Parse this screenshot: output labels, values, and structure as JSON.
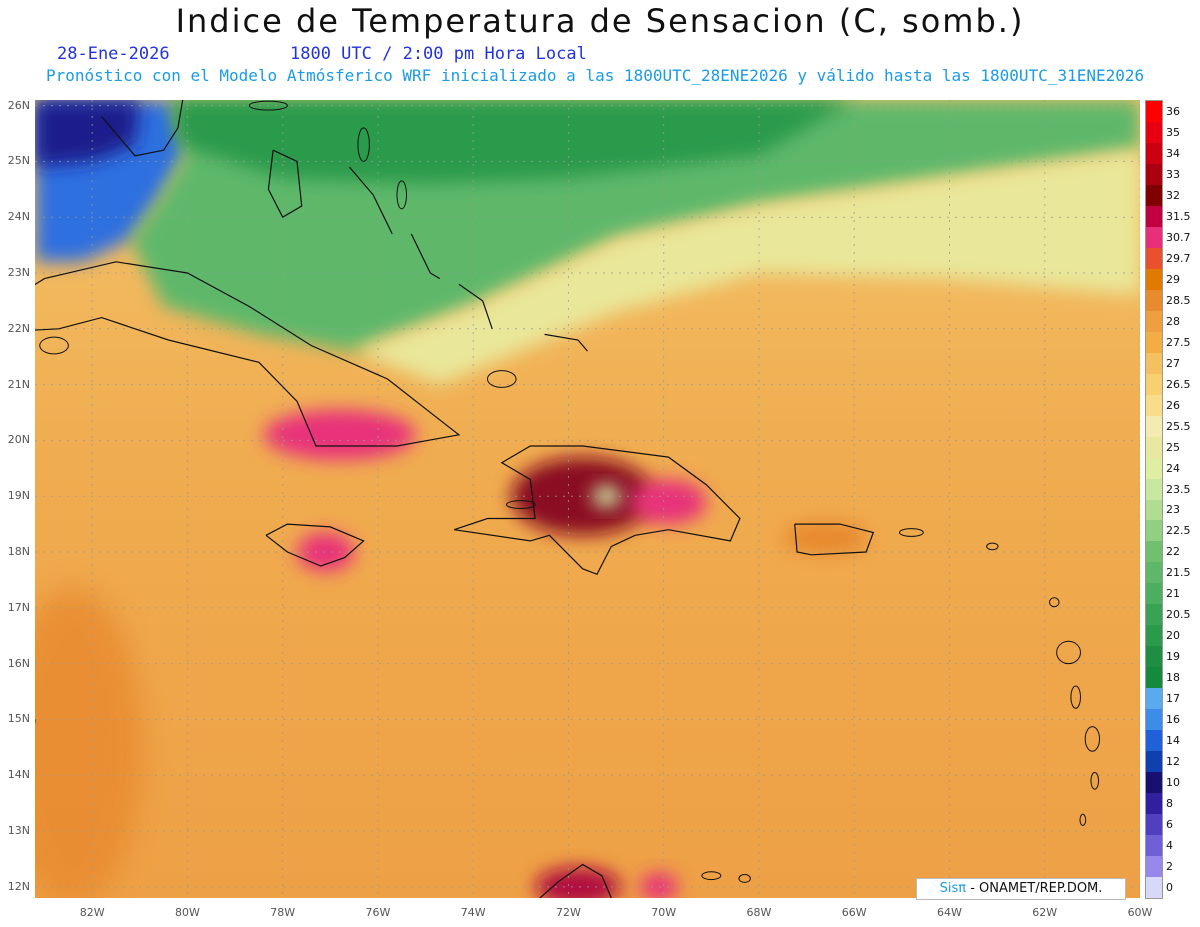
{
  "header": {
    "title": "Indice de Temperatura de Sensacion (C, somb.)",
    "date": "28-Ene-2026",
    "time": "1800 UTC / 2:00 pm Hora Local",
    "subtitle": "Pronóstico con el Modelo Atmósferico WRF inicializado a las 1800UTC_28ENE2026 y válido hasta las  1800UTC_31ENE2026"
  },
  "map": {
    "lon_range": [
      -83.2,
      -60
    ],
    "lat_range": [
      11.8,
      26.1
    ],
    "lat_ticks": [
      {
        "value": 26,
        "label": "26N"
      },
      {
        "value": 25,
        "label": "25N"
      },
      {
        "value": 24,
        "label": "24N"
      },
      {
        "value": 23,
        "label": "23N"
      },
      {
        "value": 22,
        "label": "22N"
      },
      {
        "value": 21,
        "label": "21N"
      },
      {
        "value": 20,
        "label": "20N"
      },
      {
        "value": 19,
        "label": "19N"
      },
      {
        "value": 18,
        "label": "18N"
      },
      {
        "value": 17,
        "label": "17N"
      },
      {
        "value": 16,
        "label": "16N"
      },
      {
        "value": 15,
        "label": "15N"
      },
      {
        "value": 14,
        "label": "14N"
      },
      {
        "value": 13,
        "label": "13N"
      },
      {
        "value": 12,
        "label": "12N"
      }
    ],
    "lon_ticks": [
      {
        "value": -82,
        "label": "82W"
      },
      {
        "value": -80,
        "label": "80W"
      },
      {
        "value": -78,
        "label": "78W"
      },
      {
        "value": -76,
        "label": "76W"
      },
      {
        "value": -74,
        "label": "74W"
      },
      {
        "value": -72,
        "label": "72W"
      },
      {
        "value": -70,
        "label": "70W"
      },
      {
        "value": -68,
        "label": "68W"
      },
      {
        "value": -66,
        "label": "66W"
      },
      {
        "value": -64,
        "label": "64W"
      },
      {
        "value": -62,
        "label": "62W"
      },
      {
        "value": -60,
        "label": "60W"
      }
    ],
    "field_regions": [
      {
        "name": "gulf-cool",
        "color": "#2f6fe0",
        "poly": [
          [
            -83.2,
            26.1
          ],
          [
            -80.3,
            26.1
          ],
          [
            -80.0,
            25.2
          ],
          [
            -80.6,
            24.3
          ],
          [
            -81.2,
            23.6
          ],
          [
            -82.2,
            23.2
          ],
          [
            -83.2,
            23.2
          ]
        ]
      },
      {
        "name": "florida-cold",
        "color": "#1e1a8c",
        "poly": [
          [
            -83.2,
            26.1
          ],
          [
            -81.0,
            26.1
          ],
          [
            -81.1,
            25.3
          ],
          [
            -82.0,
            25.0
          ],
          [
            -83.2,
            24.9
          ]
        ]
      },
      {
        "name": "green-north",
        "color": "#5fb86a",
        "poly": [
          [
            -80.3,
            26.1
          ],
          [
            -60,
            26.1
          ],
          [
            -60,
            25.2
          ],
          [
            -64,
            24.7
          ],
          [
            -68,
            24.2
          ],
          [
            -71,
            23.6
          ],
          [
            -74,
            22.4
          ],
          [
            -76.5,
            21.6
          ],
          [
            -78.5,
            21.9
          ],
          [
            -80.5,
            22.4
          ],
          [
            -81.2,
            23.6
          ],
          [
            -80.6,
            24.3
          ],
          [
            -80.0,
            25.2
          ]
        ]
      },
      {
        "name": "green-deep",
        "color": "#2a9a4c",
        "poly": [
          [
            -80.3,
            26.1
          ],
          [
            -66,
            26.1
          ],
          [
            -68,
            25.1
          ],
          [
            -72,
            24.7
          ],
          [
            -75,
            24.6
          ],
          [
            -78,
            24.7
          ],
          [
            -80.2,
            25.3
          ]
        ]
      },
      {
        "name": "yellow-band",
        "color": "#e9e79a",
        "poly": [
          [
            -60,
            25.2
          ],
          [
            -60,
            22.6
          ],
          [
            -64,
            22.9
          ],
          [
            -68,
            23.0
          ],
          [
            -71,
            22.3
          ],
          [
            -73,
            21.6
          ],
          [
            -74.7,
            21.0
          ],
          [
            -76.5,
            21.6
          ],
          [
            -74,
            22.4
          ],
          [
            -71,
            23.6
          ],
          [
            -68,
            24.2
          ],
          [
            -64,
            24.7
          ]
        ]
      }
    ],
    "hotspots": [
      {
        "name": "cuba-east-hot",
        "lon": -76.8,
        "lat": 20.1,
        "rx": 1.6,
        "ry": 0.45,
        "color": "#e8307a"
      },
      {
        "name": "hispaniola-hot",
        "lon": -71.7,
        "lat": 19.0,
        "rx": 1.5,
        "ry": 0.7,
        "color": "#8a0a20"
      },
      {
        "name": "hispaniola-east",
        "lon": -69.9,
        "lat": 18.9,
        "rx": 0.8,
        "ry": 0.4,
        "color": "#e8307a"
      },
      {
        "name": "jamaica-hot",
        "lon": -77.1,
        "lat": 18.0,
        "rx": 0.6,
        "ry": 0.35,
        "color": "#e8307a"
      },
      {
        "name": "puerto-rico-warm",
        "lon": -66.6,
        "lat": 18.25,
        "rx": 0.9,
        "ry": 0.3,
        "color": "#e8892e"
      },
      {
        "name": "venezuela-hot",
        "lon": -71.8,
        "lat": 12.0,
        "rx": 0.9,
        "ry": 0.35,
        "color": "#b01040"
      },
      {
        "name": "aruba-hot",
        "lon": -70.1,
        "lat": 12.0,
        "rx": 0.4,
        "ry": 0.25,
        "color": "#e8307a"
      },
      {
        "name": "hispaniola-center-cool",
        "lon": -71.2,
        "lat": 19.0,
        "rx": 0.3,
        "ry": 0.2,
        "color": "#cde9a8"
      }
    ],
    "coastlines": [
      {
        "name": "cuba-coastline",
        "pts": [
          [
            -84.9,
            21.9
          ],
          [
            -83.0,
            22.9
          ],
          [
            -81.5,
            23.2
          ],
          [
            -80.0,
            23.0
          ],
          [
            -78.7,
            22.4
          ],
          [
            -77.4,
            21.7
          ],
          [
            -75.8,
            21.1
          ],
          [
            -74.6,
            20.3
          ],
          [
            -74.3,
            20.1
          ],
          [
            -75.6,
            19.9
          ],
          [
            -77.3,
            19.9
          ],
          [
            -77.7,
            20.7
          ],
          [
            -78.5,
            21.4
          ],
          [
            -80.4,
            21.8
          ],
          [
            -81.8,
            22.2
          ],
          [
            -82.7,
            22.0
          ],
          [
            -84.9,
            21.9
          ]
        ]
      },
      {
        "name": "hispaniola-coastline",
        "pts": [
          [
            -74.4,
            18.4
          ],
          [
            -72.8,
            18.2
          ],
          [
            -72.4,
            18.3
          ],
          [
            -71.7,
            17.7
          ],
          [
            -71.4,
            17.6
          ],
          [
            -71.1,
            18.1
          ],
          [
            -70.6,
            18.3
          ],
          [
            -69.9,
            18.4
          ],
          [
            -68.6,
            18.2
          ],
          [
            -68.4,
            18.6
          ],
          [
            -69.1,
            19.2
          ],
          [
            -69.9,
            19.7
          ],
          [
            -71.7,
            19.9
          ],
          [
            -72.8,
            19.9
          ],
          [
            -73.4,
            19.6
          ],
          [
            -72.8,
            19.3
          ],
          [
            -72.7,
            18.6
          ],
          [
            -73.7,
            18.6
          ],
          [
            -74.4,
            18.4
          ]
        ]
      },
      {
        "name": "jamaica-coastline",
        "pts": [
          [
            -78.35,
            18.3
          ],
          [
            -77.9,
            18.5
          ],
          [
            -77.0,
            18.45
          ],
          [
            -76.3,
            18.2
          ],
          [
            -76.7,
            17.9
          ],
          [
            -77.2,
            17.75
          ],
          [
            -77.9,
            18.0
          ],
          [
            -78.35,
            18.3
          ]
        ]
      },
      {
        "name": "puerto-rico-coastline",
        "pts": [
          [
            -67.25,
            18.5
          ],
          [
            -66.3,
            18.5
          ],
          [
            -65.6,
            18.35
          ],
          [
            -65.75,
            18.0
          ],
          [
            -66.9,
            17.95
          ],
          [
            -67.2,
            18.0
          ],
          [
            -67.25,
            18.5
          ]
        ]
      },
      {
        "name": "florida-coastline",
        "pts": [
          [
            -80.1,
            26.1
          ],
          [
            -80.2,
            25.6
          ],
          [
            -80.5,
            25.2
          ],
          [
            -81.1,
            25.1
          ],
          [
            -81.8,
            25.8
          ]
        ]
      },
      {
        "name": "andros-coastline",
        "pts": [
          [
            -78.2,
            25.2
          ],
          [
            -77.7,
            25.0
          ],
          [
            -77.6,
            24.2
          ],
          [
            -78.0,
            24.0
          ],
          [
            -78.3,
            24.5
          ],
          [
            -78.2,
            25.2
          ]
        ]
      },
      {
        "name": "bahamas-exuma-coastline",
        "pts": [
          [
            -76.6,
            24.9
          ],
          [
            -76.1,
            24.4
          ],
          [
            -75.7,
            23.7
          ]
        ]
      },
      {
        "name": "long-island-coastline",
        "pts": [
          [
            -75.3,
            23.7
          ],
          [
            -74.9,
            23.0
          ],
          [
            -74.7,
            22.9
          ]
        ]
      },
      {
        "name": "acklins-coastline",
        "pts": [
          [
            -74.3,
            22.8
          ],
          [
            -73.8,
            22.5
          ],
          [
            -73.6,
            22.0
          ]
        ]
      },
      {
        "name": "caicos-coastline",
        "pts": [
          [
            -72.5,
            21.9
          ],
          [
            -71.8,
            21.8
          ],
          [
            -71.6,
            21.6
          ]
        ]
      },
      {
        "name": "venezuela-coastline",
        "pts": [
          [
            -72.6,
            11.8
          ],
          [
            -72.2,
            12.1
          ],
          [
            -71.7,
            12.4
          ],
          [
            -71.3,
            12.2
          ],
          [
            -71.1,
            11.8
          ]
        ]
      },
      {
        "name": "nicaragua-coastline",
        "pts": [
          [
            -83.2,
            15.0
          ],
          [
            -83.3,
            14.2
          ]
        ]
      }
    ],
    "islands": [
      {
        "name": "grand-bahama-island",
        "lon": -78.3,
        "lat": 26.0,
        "rx": 0.4,
        "ry": 0.08
      },
      {
        "name": "eleuthera-island",
        "lon": -76.3,
        "lat": 25.3,
        "rx": 0.12,
        "ry": 0.3
      },
      {
        "name": "cat-island",
        "lon": -75.5,
        "lat": 24.4,
        "rx": 0.1,
        "ry": 0.25
      },
      {
        "name": "great-inagua-island",
        "lon": -73.4,
        "lat": 21.1,
        "rx": 0.3,
        "ry": 0.15
      },
      {
        "name": "isla-juventud",
        "lon": -82.8,
        "lat": 21.7,
        "rx": 0.3,
        "ry": 0.15
      },
      {
        "name": "gonave-island",
        "lon": -73.0,
        "lat": 18.85,
        "rx": 0.3,
        "ry": 0.07
      },
      {
        "name": "virgin-islands",
        "lon": -64.8,
        "lat": 18.35,
        "rx": 0.25,
        "ry": 0.07
      },
      {
        "name": "anguilla",
        "lon": -63.1,
        "lat": 18.1,
        "rx": 0.12,
        "ry": 0.06
      },
      {
        "name": "antigua",
        "lon": -61.8,
        "lat": 17.1,
        "rx": 0.1,
        "ry": 0.08
      },
      {
        "name": "guadeloupe",
        "lon": -61.5,
        "lat": 16.2,
        "rx": 0.25,
        "ry": 0.2
      },
      {
        "name": "dominica",
        "lon": -61.35,
        "lat": 15.4,
        "rx": 0.1,
        "ry": 0.2
      },
      {
        "name": "martinique",
        "lon": -61.0,
        "lat": 14.65,
        "rx": 0.15,
        "ry": 0.22
      },
      {
        "name": "st-lucia",
        "lon": -60.95,
        "lat": 13.9,
        "rx": 0.08,
        "ry": 0.15
      },
      {
        "name": "st-vincent",
        "lon": -61.2,
        "lat": 13.2,
        "rx": 0.06,
        "ry": 0.1
      },
      {
        "name": "curacao",
        "lon": -69.0,
        "lat": 12.2,
        "rx": 0.2,
        "ry": 0.07
      },
      {
        "name": "bonaire",
        "lon": -68.3,
        "lat": 12.15,
        "rx": 0.12,
        "ry": 0.07
      }
    ]
  },
  "legend": {
    "levels": [
      "36",
      "35",
      "34",
      "33",
      "32",
      "31.5",
      "30.7",
      "29.7",
      "29",
      "28.5",
      "28",
      "27.5",
      "27",
      "26.5",
      "26",
      "25.5",
      "25",
      "24",
      "23.5",
      "23",
      "22.5",
      "22",
      "21.5",
      "21",
      "20.5",
      "20",
      "19",
      "18",
      "17",
      "16",
      "14",
      "12",
      "10",
      "8",
      "6",
      "4",
      "2",
      "0"
    ],
    "colors": [
      "#ff0000",
      "#e80010",
      "#cc0010",
      "#aa0010",
      "#800000",
      "#c00040",
      "#e8307a",
      "#e85030",
      "#e07a00",
      "#e88a2e",
      "#eea040",
      "#f2ae45",
      "#f5c060",
      "#f7d070",
      "#f8de8a",
      "#f4ebb0",
      "#e8e8a0",
      "#dfeea0",
      "#c8e8a0",
      "#b0dd90",
      "#90d080",
      "#70c070",
      "#5fb86a",
      "#4cae5f",
      "#3aa255",
      "#2a9a4c",
      "#1f8e42",
      "#168a3c",
      "#5aaaf0",
      "#3c8ce8",
      "#2060d8",
      "#1040b0",
      "#181070",
      "#3020a0",
      "#5040c0",
      "#7060d8",
      "#9888ec",
      "#d8d8f8"
    ]
  },
  "credit": {
    "sis": "Sisπ",
    "org": " - ONAMET/REP.DOM."
  }
}
